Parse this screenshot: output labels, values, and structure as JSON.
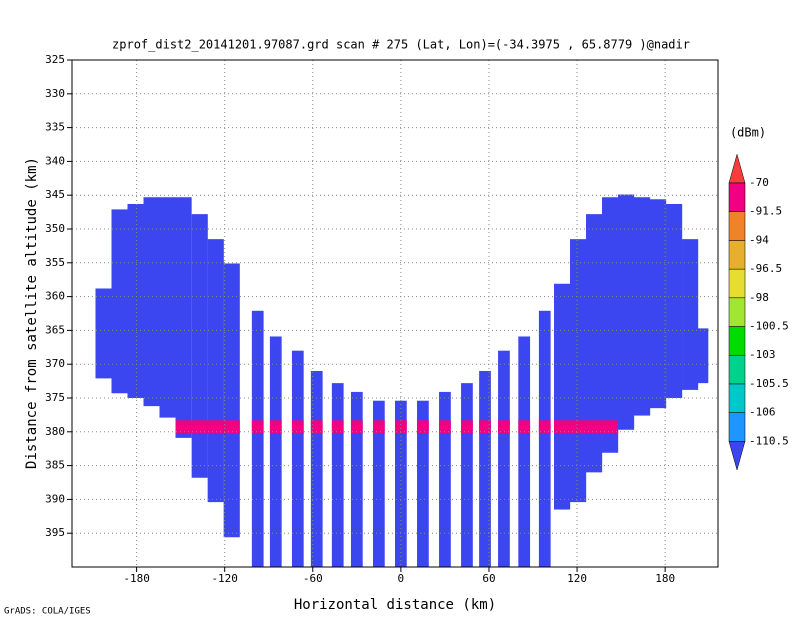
{
  "chart_data": {
    "type": "shaded",
    "title": "zprof_dist2_20141201.97087.grd  scan # 275  (Lat, Lon)=(-34.3975 , 65.8779 )@nadir",
    "xlabel": "Horizontal distance (km)",
    "ylabel": "Distance from satellite altitude (km)",
    "credit": "GrADS: COLA/IGES",
    "xlim": [
      -224,
      216
    ],
    "ylim": [
      400,
      325
    ],
    "xticks": [
      -180,
      -120,
      -60,
      0,
      60,
      120,
      180
    ],
    "yticks": [
      325,
      330,
      335,
      340,
      345,
      350,
      355,
      360,
      365,
      370,
      375,
      380,
      385,
      390,
      395
    ],
    "grid": true,
    "beams": [
      {
        "color": "#3c46f0",
        "width": 11,
        "x": [
          -202.5,
          -191.6,
          -180.7,
          -169.8,
          -158.9,
          -148,
          -137,
          -126.1,
          -115.2,
          109.8,
          120.7,
          131.6,
          142.5,
          153.4,
          164.3,
          175.2,
          186.1,
          197,
          203.9
        ],
        "top": [
          358.8,
          347.1,
          346.3,
          345.3,
          345.3,
          345.3,
          347.8,
          351.5,
          355.1,
          358.1,
          351.5,
          347.8,
          345.3,
          344.9,
          345.3,
          345.6,
          346.3,
          351.5,
          364.7
        ],
        "bottom": [
          372.1,
          374.3,
          375,
          376.2,
          377.9,
          380.9,
          386.8,
          390.4,
          395.6,
          391.5,
          390.4,
          386,
          383.1,
          379.7,
          377.6,
          376.5,
          375,
          373.8,
          372.8
        ]
      },
      {
        "color": "#3c46f0",
        "width": 8,
        "x": [
          -97.5,
          -85.2,
          -70.2,
          -57.3,
          -43,
          -30,
          -15,
          0,
          15,
          30,
          45,
          57.3,
          70.2,
          84,
          98
        ],
        "top": [
          362.1,
          365.9,
          368,
          371,
          372.8,
          374.1,
          375.4,
          375.4,
          375.4,
          374.1,
          372.8,
          371,
          368,
          365.9,
          362.1
        ],
        "bottom": [
          400,
          400,
          400,
          400,
          400,
          400,
          400,
          400,
          400,
          400,
          400,
          400,
          400,
          400,
          400
        ]
      }
    ],
    "surface": {
      "color": "#f00082",
      "top": 378.3,
      "bottom": 380.3,
      "x_range": [
        -160,
        150
      ]
    },
    "colorbar": {
      "label": "(dBm)",
      "levels": [
        -110.5,
        -106,
        -105.5,
        -103,
        -100.5,
        -98,
        -96.5,
        -94,
        -91.5,
        -70
      ],
      "colors": [
        "#3c46f0",
        "#1e96ff",
        "#00c8c8",
        "#00d28c",
        "#00dc00",
        "#a0e632",
        "#e6dc32",
        "#e6af2d",
        "#f08228",
        "#f00082",
        "#fa3c3c"
      ]
    }
  }
}
